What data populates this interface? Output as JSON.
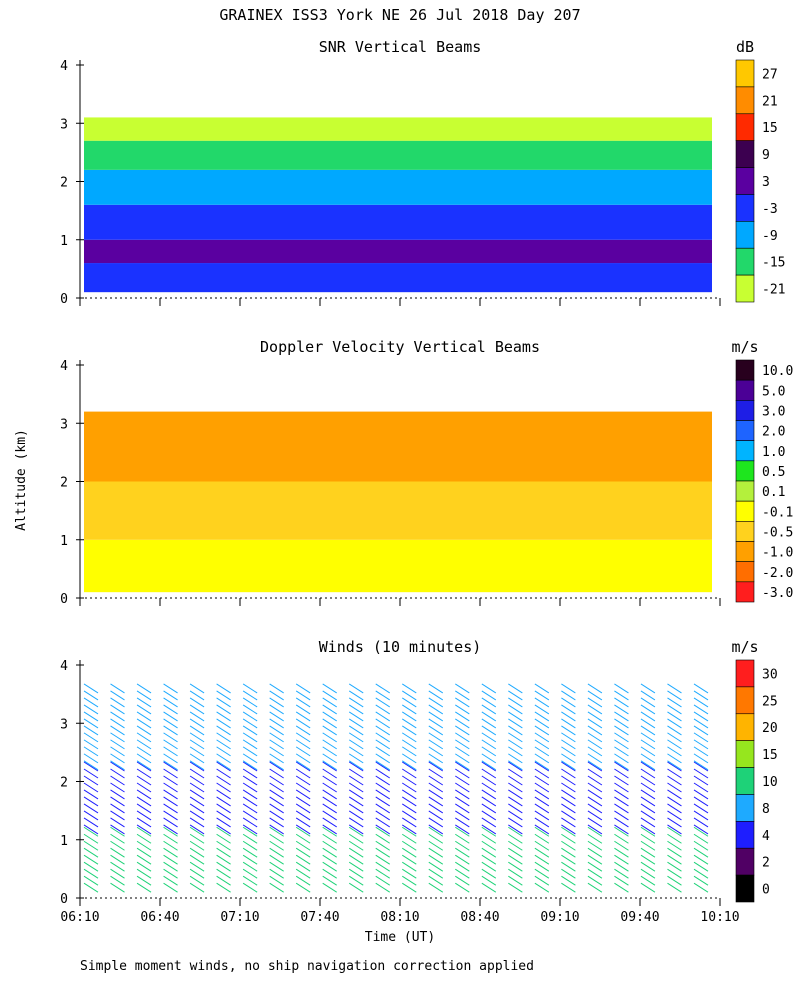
{
  "figure_title": "GRAINEX ISS3 York NE  26 Jul 2018 Day 207",
  "y_axis_label": "Altitude (km)",
  "x_axis_label": "Time (UT)",
  "footnote": "Simple moment winds, no ship navigation correction applied",
  "chart_data": [
    {
      "type": "heatmap",
      "title": "SNR Vertical Beams",
      "units": "dB",
      "ylim": [
        0,
        4
      ],
      "y_ticks": [
        0,
        1,
        2,
        3,
        4
      ],
      "x_ticks": [
        "06:10",
        "06:40",
        "07:10",
        "07:40",
        "08:10",
        "08:40",
        "09:10",
        "09:40",
        "10:10"
      ],
      "colorbar_labels": [
        "27",
        "21",
        "15",
        "9",
        "3",
        "-3",
        "-9",
        "-15",
        "-21"
      ],
      "colorbar_colors": [
        "#ffc800",
        "#ff8c00",
        "#ff2a00",
        "#3c0050",
        "#5a00a0",
        "#1a32ff",
        "#00a8ff",
        "#22d86a",
        "#c8ff32"
      ],
      "layers": [
        {
          "alt_range": [
            0.1,
            0.6
          ],
          "value": -3
        },
        {
          "alt_range": [
            0.6,
            1.0
          ],
          "value": 3
        },
        {
          "alt_range": [
            1.0,
            1.6
          ],
          "value": -3
        },
        {
          "alt_range": [
            1.6,
            2.2
          ],
          "value": -9
        },
        {
          "alt_range": [
            2.2,
            2.7
          ],
          "value": -15
        },
        {
          "alt_range": [
            2.7,
            3.1
          ],
          "value": -21
        }
      ]
    },
    {
      "type": "heatmap",
      "title": "Doppler Velocity Vertical Beams",
      "units": "m/s",
      "ylim": [
        0,
        4
      ],
      "y_ticks": [
        0,
        1,
        2,
        3,
        4
      ],
      "colorbar_labels": [
        "10.0",
        "5.0",
        "3.0",
        "2.0",
        "1.0",
        "0.5",
        "0.1",
        "-0.1",
        "-0.5",
        "-1.0",
        "-2.0",
        "-3.0"
      ],
      "colorbar_colors": [
        "#28001e",
        "#4b0096",
        "#1e1ee6",
        "#1e64ff",
        "#00b4ff",
        "#1ee61e",
        "#b4f03c",
        "#ffff00",
        "#ffd21e",
        "#ffa000",
        "#ff6e00",
        "#ff1e1e"
      ],
      "layers": [
        {
          "alt_range": [
            0.1,
            1.0
          ],
          "value": -0.1
        },
        {
          "alt_range": [
            1.0,
            2.0
          ],
          "value": -0.5
        },
        {
          "alt_range": [
            2.0,
            3.2
          ],
          "value": -1.0
        }
      ]
    },
    {
      "type": "barbs",
      "title": "Winds (10 minutes)",
      "units": "m/s",
      "ylim": [
        0,
        4
      ],
      "y_ticks": [
        0,
        1,
        2,
        3,
        4
      ],
      "x_ticks": [
        "06:10",
        "06:40",
        "07:10",
        "07:40",
        "08:10",
        "08:40",
        "09:10",
        "09:40",
        "10:10"
      ],
      "colorbar_labels": [
        "30",
        "25",
        "20",
        "15",
        "10",
        "8",
        "4",
        "2",
        "0"
      ],
      "colorbar_colors": [
        "#ff1e1e",
        "#ff7800",
        "#ffb400",
        "#96e61e",
        "#1ed278",
        "#1eaaff",
        "#1e1eff",
        "#500064",
        "#000000"
      ],
      "profile_count": 24,
      "speed_by_altitude": [
        {
          "alt_range": [
            0.1,
            1.1
          ],
          "speed": 12
        },
        {
          "alt_range": [
            1.1,
            2.2
          ],
          "speed": 3
        },
        {
          "alt_range": [
            2.2,
            3.6
          ],
          "speed": 6
        }
      ]
    }
  ]
}
